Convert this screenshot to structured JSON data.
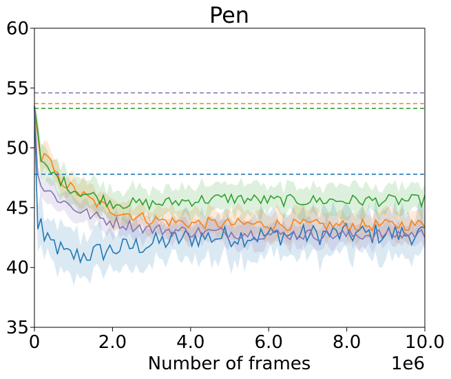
{
  "chart_data": {
    "type": "line",
    "title": "Pen",
    "xlabel": "Number of frames",
    "ylabel": "",
    "x_offset_label": "1e6",
    "xlim": [
      0,
      10000000
    ],
    "ylim": [
      35,
      60
    ],
    "xticks": [
      0,
      2000000,
      4000000,
      6000000,
      8000000,
      10000000
    ],
    "xtick_labels": [
      "0",
      "2.0",
      "4.0",
      "6.0",
      "8.0",
      "10.0"
    ],
    "yticks": [
      35,
      40,
      45,
      50,
      55,
      60
    ],
    "ytick_labels": [
      "35",
      "40",
      "45",
      "50",
      "55",
      "60"
    ],
    "grid": false,
    "legend": "none",
    "num_points": 120,
    "x_end": 10000000,
    "series": [
      {
        "color": "#1f77b4",
        "baseline": 47.8,
        "band": 1.8,
        "anchors": [
          [
            0,
            53.5
          ],
          [
            0.08,
            42.8
          ],
          [
            0.15,
            45.0
          ],
          [
            0.25,
            42.0
          ],
          [
            0.5,
            42.0
          ],
          [
            0.8,
            41.0
          ],
          [
            1.2,
            41.0
          ],
          [
            2.0,
            41.5
          ],
          [
            3.0,
            42.0
          ],
          [
            4.0,
            42.5
          ],
          [
            6.0,
            42.7
          ],
          [
            8.0,
            42.8
          ],
          [
            10.0,
            42.8
          ]
        ]
      },
      {
        "color": "#ff7f0e",
        "baseline": 53.7,
        "band": 1.1,
        "anchors": [
          [
            0,
            53.5
          ],
          [
            0.15,
            49.0
          ],
          [
            0.3,
            49.3
          ],
          [
            0.6,
            47.5
          ],
          [
            1.0,
            46.5
          ],
          [
            1.5,
            45.5
          ],
          [
            2.0,
            44.8
          ],
          [
            3.0,
            44.0
          ],
          [
            4.0,
            43.7
          ],
          [
            6.0,
            43.6
          ],
          [
            8.0,
            43.5
          ],
          [
            10.0,
            43.6
          ]
        ]
      },
      {
        "color": "#2ca02c",
        "baseline": 53.3,
        "band": 1.2,
        "anchors": [
          [
            0,
            53.5
          ],
          [
            0.15,
            49.0
          ],
          [
            0.3,
            48.2
          ],
          [
            0.6,
            47.5
          ],
          [
            1.0,
            46.5
          ],
          [
            1.5,
            46.0
          ],
          [
            2.0,
            45.4
          ],
          [
            3.0,
            45.3
          ],
          [
            4.0,
            45.6
          ],
          [
            5.0,
            45.8
          ],
          [
            6.0,
            45.6
          ],
          [
            8.0,
            45.6
          ],
          [
            10.0,
            45.6
          ]
        ]
      },
      {
        "color": "#8172b2",
        "baseline": 54.6,
        "band": 0.9,
        "anchors": [
          [
            0,
            53.5
          ],
          [
            0.1,
            47.0
          ],
          [
            0.3,
            46.5
          ],
          [
            0.6,
            45.8
          ],
          [
            1.0,
            45.0
          ],
          [
            1.5,
            44.3
          ],
          [
            2.0,
            43.8
          ],
          [
            3.0,
            43.2
          ],
          [
            4.0,
            43.0
          ],
          [
            6.0,
            42.8
          ],
          [
            8.0,
            42.7
          ],
          [
            10.0,
            42.8
          ]
        ]
      }
    ]
  }
}
